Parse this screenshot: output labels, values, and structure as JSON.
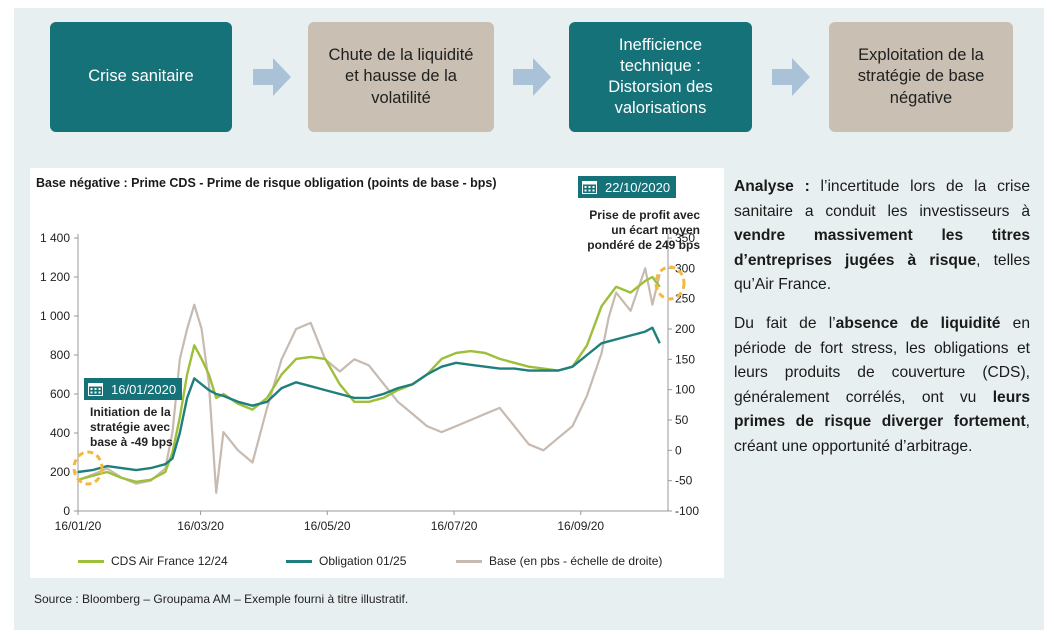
{
  "flow": [
    {
      "label": "Crise sanitaire",
      "style": "teal"
    },
    {
      "label": "Chute de la liquidité\net hausse de la\nvolatilité",
      "style": "beige"
    },
    {
      "label": "Inefficience\ntechnique :\nDistorsion des\nvalorisations",
      "style": "teal"
    },
    {
      "label": "Exploitation de la\nstratégie de base\nnégative",
      "style": "beige"
    }
  ],
  "colors": {
    "teal": "#157279",
    "beige": "#c9bfb2",
    "arrow": "#a9c2d8",
    "cds": "#9dbf3a",
    "bond": "#1e7f7c",
    "base": "#c7bab0",
    "marker": "#f3b83c"
  },
  "chart_data": {
    "type": "line",
    "title": "Base négative : Prime CDS - Prime de risque obligation (points de base - bps)",
    "x_tick_labels": [
      "16/01/20",
      "16/03/20",
      "16/05/20",
      "16/07/20",
      "16/09/20"
    ],
    "x_ticks_week": [
      0,
      8.43,
      17.14,
      25.86,
      34.57
    ],
    "xlim_week": [
      0,
      40.57
    ],
    "y_left": {
      "lim": [
        0,
        1400
      ],
      "ticks": [
        0,
        200,
        400,
        600,
        800,
        1000,
        1200,
        1400
      ],
      "tick_labels": [
        "0",
        "200",
        "400",
        "600",
        "800",
        "1 000",
        "1 200",
        "1 400"
      ]
    },
    "y_right": {
      "lim": [
        -100,
        350
      ],
      "ticks": [
        -100,
        -50,
        0,
        50,
        100,
        150,
        200,
        250,
        300,
        350
      ],
      "tick_labels": [
        "-100",
        "-50",
        "0",
        "50",
        "100",
        "150",
        "200",
        "250",
        "300",
        "350"
      ]
    },
    "x_week": [
      0,
      1,
      2,
      3,
      4,
      5,
      6,
      6.5,
      7,
      7.5,
      8,
      8.5,
      9,
      9.5,
      10,
      11,
      12,
      13,
      14,
      15,
      16,
      17,
      18,
      19,
      20,
      21,
      22,
      23,
      24,
      25,
      26,
      27,
      28,
      29,
      30,
      31,
      32,
      33,
      34,
      35,
      36,
      36.5,
      37,
      38,
      39,
      39.5,
      40
    ],
    "series": [
      {
        "name": "CDS Air France 12/24",
        "axis": "left",
        "values": [
          160,
          180,
          200,
          170,
          150,
          160,
          200,
          300,
          480,
          700,
          850,
          780,
          700,
          580,
          600,
          550,
          520,
          580,
          700,
          780,
          790,
          780,
          650,
          560,
          560,
          580,
          620,
          650,
          700,
          780,
          810,
          820,
          810,
          780,
          760,
          740,
          730,
          720,
          740,
          850,
          1050,
          1100,
          1150,
          1120,
          1180,
          1200,
          1150
        ]
      },
      {
        "name": "Obligation 01/25",
        "axis": "left",
        "values": [
          200,
          210,
          230,
          220,
          210,
          220,
          240,
          270,
          400,
          580,
          680,
          650,
          620,
          600,
          590,
          560,
          540,
          560,
          630,
          660,
          640,
          620,
          600,
          580,
          580,
          600,
          630,
          650,
          700,
          740,
          760,
          750,
          740,
          730,
          730,
          720,
          720,
          720,
          740,
          800,
          860,
          870,
          880,
          900,
          920,
          940,
          860
        ]
      },
      {
        "name": "Base (en pbs - échelle de droite)",
        "axis": "right",
        "values": [
          -49,
          -40,
          -30,
          -45,
          -55,
          -50,
          -30,
          30,
          150,
          200,
          240,
          200,
          110,
          -70,
          30,
          0,
          -20,
          70,
          150,
          200,
          210,
          150,
          130,
          150,
          140,
          110,
          80,
          60,
          40,
          30,
          40,
          50,
          60,
          70,
          40,
          10,
          0,
          20,
          40,
          90,
          160,
          220,
          260,
          230,
          300,
          240,
          290
        ]
      }
    ],
    "legend": [
      "CDS Air France 12/24",
      "Obligation 01/25",
      "Base (en pbs - échelle de droite)"
    ],
    "annotations": [
      {
        "date": "16/01/2020",
        "text": "Initiation de la\nstratégie avec\nbase à -49 bps"
      },
      {
        "date": "22/10/2020",
        "text": "Prise de profit avec\nun écart moyen\npondéré de 249 bps"
      }
    ]
  },
  "analysis": {
    "p1": [
      {
        "t": "Analyse : ",
        "b": true
      },
      {
        "t": "l’incertitude lors de la crise sanitaire a conduit les investisseurs à ",
        "b": false
      },
      {
        "t": "vendre massivement les titres d’entreprises jugées à risque",
        "b": true
      },
      {
        "t": ", telles qu’Air France.",
        "b": false
      }
    ],
    "p2": [
      {
        "t": "Du fait de l’",
        "b": false
      },
      {
        "t": "absence de liquidité",
        "b": true
      },
      {
        "t": " en période de fort stress, les obligations et leurs produits de couverture (CDS), généralement corrélés, ont vu ",
        "b": false
      },
      {
        "t": "leurs primes de risque diverger fortement",
        "b": true
      },
      {
        "t": ", créant une opportunité d’arbitrage.",
        "b": false
      }
    ]
  },
  "source": "Source : Bloomberg – Groupama AM – Exemple fourni à titre illustratif."
}
